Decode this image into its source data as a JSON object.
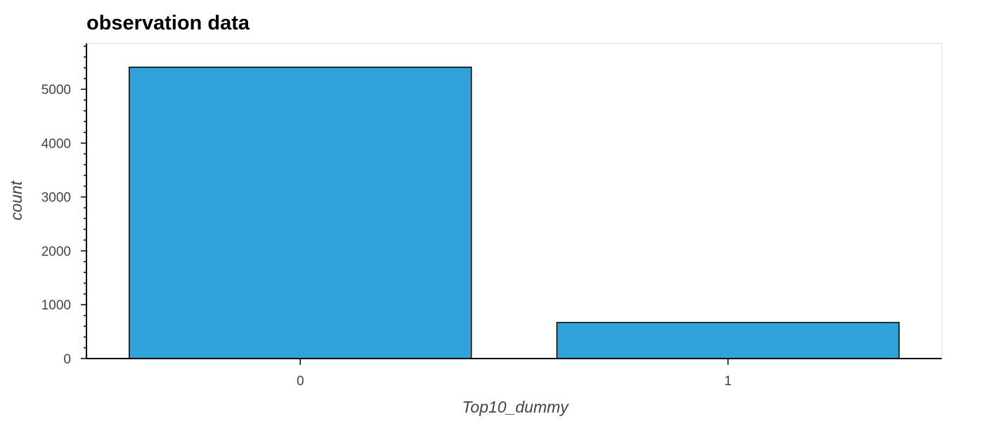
{
  "chart_data": {
    "type": "bar",
    "title": "observation data",
    "xlabel": "Top10_dummy",
    "ylabel": "count",
    "categories": [
      "0",
      "1"
    ],
    "values": [
      5410,
      670
    ],
    "ylim": [
      0,
      5850
    ],
    "yticks": [
      0,
      1000,
      2000,
      3000,
      4000,
      5000
    ],
    "yminor_step": 200,
    "grid": false,
    "legend": "none",
    "bar_color": "#30a2da",
    "bar_edge_color": "#000000"
  }
}
